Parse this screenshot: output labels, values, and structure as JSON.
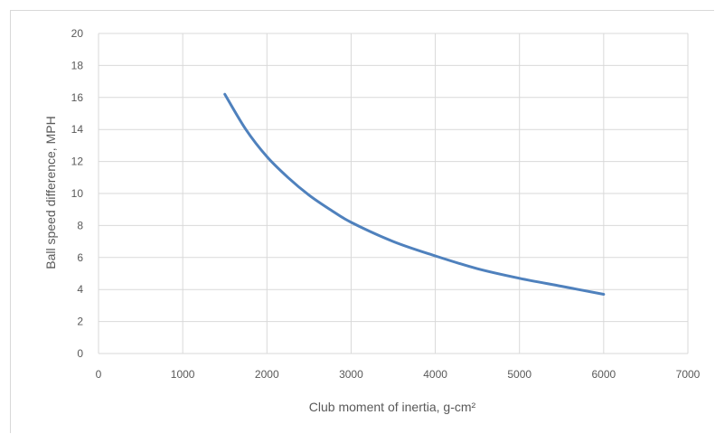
{
  "chart_data": {
    "type": "line",
    "title": "",
    "xlabel": "Club moment of inertia, g-cm²",
    "ylabel": "Ball speed difference, MPH",
    "xlim": [
      0,
      7000
    ],
    "ylim": [
      0,
      20
    ],
    "x_ticks": [
      0,
      1000,
      2000,
      3000,
      4000,
      5000,
      6000,
      7000
    ],
    "y_ticks": [
      0,
      2,
      4,
      6,
      8,
      10,
      12,
      14,
      16,
      18,
      20
    ],
    "grid": true,
    "legend": "none",
    "series": [
      {
        "color": "#4f81bd",
        "x": [
          1500,
          1750,
          2000,
          2250,
          2500,
          2750,
          3000,
          3500,
          4000,
          4500,
          5000,
          5500,
          6000
        ],
        "y": [
          16.2,
          14.0,
          12.3,
          11.0,
          9.9,
          9.0,
          8.2,
          7.0,
          6.1,
          5.3,
          4.7,
          4.2,
          3.7
        ]
      }
    ]
  }
}
